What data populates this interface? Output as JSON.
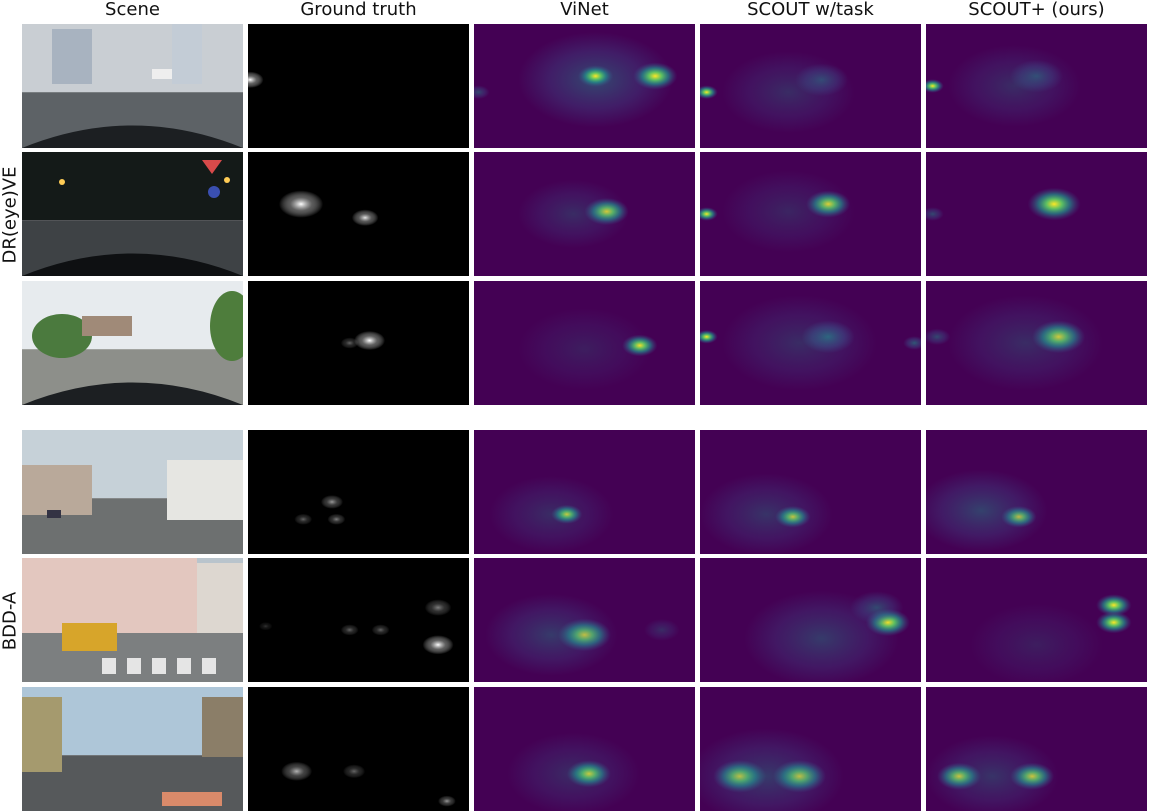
{
  "columns": [
    {
      "key": "scene",
      "label": "Scene"
    },
    {
      "key": "gt",
      "label": "Ground truth"
    },
    {
      "key": "vinet",
      "label": "ViNet"
    },
    {
      "key": "scout_task",
      "label": "SCOUT w/task"
    },
    {
      "key": "scout_plus",
      "label": "SCOUT+ (ours)"
    }
  ],
  "groups": [
    {
      "label": "DR(eye)VE",
      "rows": 3
    },
    {
      "label": "BDD-A",
      "rows": 3
    }
  ],
  "colors": {
    "heatmap_background": "#440154",
    "heatmap_low": "#3b528b",
    "heatmap_mid": "#21918c",
    "heatmap_high": "#5ec962",
    "heatmap_peak": "#fde725",
    "gt_background": "#000000",
    "gt_spot": "#ffffff"
  },
  "rows": [
    {
      "scene": {
        "kind": "day-road-rain",
        "sky": "#c9ced3",
        "ground": "#5d6266"
      },
      "gt": [
        [
          0.01,
          0.45,
          0.06,
          1.0
        ]
      ],
      "vinet": [
        [
          0.55,
          0.45,
          0.35,
          0.5
        ],
        [
          0.55,
          0.42,
          0.08,
          1.0
        ],
        [
          0.82,
          0.42,
          0.1,
          0.9
        ],
        [
          0.02,
          0.55,
          0.05,
          0.5
        ]
      ],
      "scout_task": [
        [
          0.55,
          0.45,
          0.12,
          0.5
        ],
        [
          0.03,
          0.55,
          0.05,
          1.0
        ],
        [
          0.4,
          0.55,
          0.3,
          0.3
        ]
      ],
      "scout_plus": [
        [
          0.5,
          0.42,
          0.12,
          0.5
        ],
        [
          0.03,
          0.5,
          0.05,
          1.0
        ],
        [
          0.4,
          0.5,
          0.3,
          0.3
        ]
      ]
    },
    {
      "scene": {
        "kind": "night-road",
        "sky": "#141a18",
        "ground": "#3e4245"
      },
      "gt": [
        [
          0.24,
          0.42,
          0.1,
          1.0
        ],
        [
          0.53,
          0.53,
          0.06,
          0.9
        ]
      ],
      "vinet": [
        [
          0.6,
          0.48,
          0.1,
          1.0
        ],
        [
          0.45,
          0.5,
          0.25,
          0.3
        ]
      ],
      "scout_task": [
        [
          0.58,
          0.42,
          0.1,
          1.0
        ],
        [
          0.03,
          0.5,
          0.05,
          0.8
        ],
        [
          0.4,
          0.48,
          0.3,
          0.25
        ]
      ],
      "scout_plus": [
        [
          0.58,
          0.42,
          0.12,
          1.0
        ],
        [
          0.03,
          0.5,
          0.05,
          0.5
        ]
      ]
    },
    {
      "scene": {
        "kind": "day-roundabout",
        "sky": "#e7ebee",
        "ground": "#8d8f8a"
      },
      "gt": [
        [
          0.55,
          0.48,
          0.07,
          1.0
        ],
        [
          0.46,
          0.5,
          0.04,
          0.4
        ]
      ],
      "vinet": [
        [
          0.75,
          0.52,
          0.08,
          1.0
        ],
        [
          0.5,
          0.55,
          0.3,
          0.2
        ]
      ],
      "scout_task": [
        [
          0.58,
          0.45,
          0.12,
          0.7
        ],
        [
          0.03,
          0.45,
          0.05,
          0.8
        ],
        [
          0.97,
          0.5,
          0.05,
          0.6
        ],
        [
          0.45,
          0.5,
          0.35,
          0.3
        ]
      ],
      "scout_plus": [
        [
          0.6,
          0.45,
          0.12,
          1.0
        ],
        [
          0.05,
          0.45,
          0.06,
          0.5
        ],
        [
          0.45,
          0.5,
          0.35,
          0.3
        ]
      ]
    },
    {
      "scene": {
        "kind": "day-suburb",
        "sky": "#c6d1d8",
        "ground": "#6d7070"
      },
      "gt": [
        [
          0.38,
          0.58,
          0.05,
          0.6
        ],
        [
          0.25,
          0.72,
          0.04,
          0.4
        ],
        [
          0.4,
          0.72,
          0.04,
          0.5
        ]
      ],
      "vinet": [
        [
          0.42,
          0.68,
          0.07,
          1.0
        ],
        [
          0.35,
          0.68,
          0.28,
          0.3
        ]
      ],
      "scout_task": [
        [
          0.42,
          0.7,
          0.08,
          1.0
        ],
        [
          0.3,
          0.68,
          0.3,
          0.35
        ]
      ],
      "scout_plus": [
        [
          0.42,
          0.7,
          0.08,
          1.0
        ],
        [
          0.25,
          0.65,
          0.3,
          0.45
        ]
      ]
    },
    {
      "scene": {
        "kind": "day-city-jeep",
        "sky": "#b9c4cc",
        "ground": "#7c7f80"
      },
      "gt": [
        [
          0.86,
          0.7,
          0.07,
          1.0
        ],
        [
          0.86,
          0.4,
          0.06,
          0.5
        ],
        [
          0.46,
          0.58,
          0.04,
          0.4
        ],
        [
          0.6,
          0.58,
          0.04,
          0.4
        ],
        [
          0.08,
          0.55,
          0.03,
          0.2
        ]
      ],
      "vinet": [
        [
          0.5,
          0.62,
          0.12,
          1.0
        ],
        [
          0.35,
          0.62,
          0.3,
          0.4
        ],
        [
          0.85,
          0.58,
          0.08,
          0.3
        ]
      ],
      "scout_task": [
        [
          0.85,
          0.52,
          0.1,
          1.0
        ],
        [
          0.55,
          0.65,
          0.35,
          0.4
        ],
        [
          0.8,
          0.4,
          0.12,
          0.5
        ]
      ],
      "scout_plus": [
        [
          0.85,
          0.38,
          0.08,
          1.0
        ],
        [
          0.85,
          0.52,
          0.08,
          0.8
        ],
        [
          0.5,
          0.7,
          0.3,
          0.2
        ]
      ]
    },
    {
      "scene": {
        "kind": "day-hill-rain",
        "sky": "#aec6d8",
        "ground": "#56595b"
      },
      "gt": [
        [
          0.22,
          0.68,
          0.07,
          0.7
        ],
        [
          0.48,
          0.68,
          0.05,
          0.4
        ],
        [
          0.9,
          0.92,
          0.04,
          0.6
        ]
      ],
      "vinet": [
        [
          0.52,
          0.7,
          0.1,
          1.0
        ],
        [
          0.45,
          0.7,
          0.3,
          0.3
        ]
      ],
      "scout_task": [
        [
          0.18,
          0.72,
          0.12,
          1.0
        ],
        [
          0.45,
          0.72,
          0.12,
          0.9
        ],
        [
          0.3,
          0.72,
          0.35,
          0.4
        ]
      ],
      "scout_plus": [
        [
          0.15,
          0.72,
          0.1,
          1.0
        ],
        [
          0.48,
          0.72,
          0.1,
          0.8
        ],
        [
          0.3,
          0.72,
          0.3,
          0.35
        ]
      ]
    }
  ]
}
